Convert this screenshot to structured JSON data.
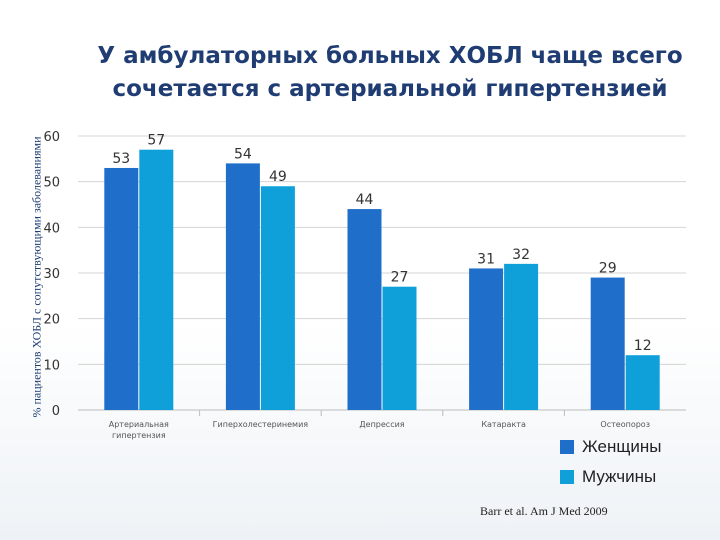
{
  "title_line1": "У амбулаторных больных ХОБЛ чаще всего",
  "title_line2": "сочетается с артериальной гипертензией",
  "source": "Barr et al. Am J Med 2009",
  "chart_data": {
    "type": "bar",
    "title": "У амбулаторных больных ХОБЛ чаще всего сочетается с артериальной гипертензией",
    "ylabel": "% пациентов ХОБЛ с сопутствующими заболеваниями",
    "xlabel": "",
    "ylim": [
      0,
      60
    ],
    "yticks": [
      0,
      10,
      20,
      30,
      40,
      50,
      60
    ],
    "grid": true,
    "legend_position": "bottom-right",
    "categories": [
      [
        "Артериальная",
        "гипертензия"
      ],
      [
        "Гиперхолестеринемия"
      ],
      [
        "Депрессия"
      ],
      [
        "Катаракта"
      ],
      [
        "Остеопороз"
      ]
    ],
    "series": [
      {
        "name": "Женщины",
        "color": "#1f6fca",
        "values": [
          53,
          54,
          44,
          31,
          29
        ]
      },
      {
        "name": "Мужчины",
        "color": "#0fa0da",
        "values": [
          57,
          49,
          27,
          32,
          12
        ]
      }
    ]
  }
}
